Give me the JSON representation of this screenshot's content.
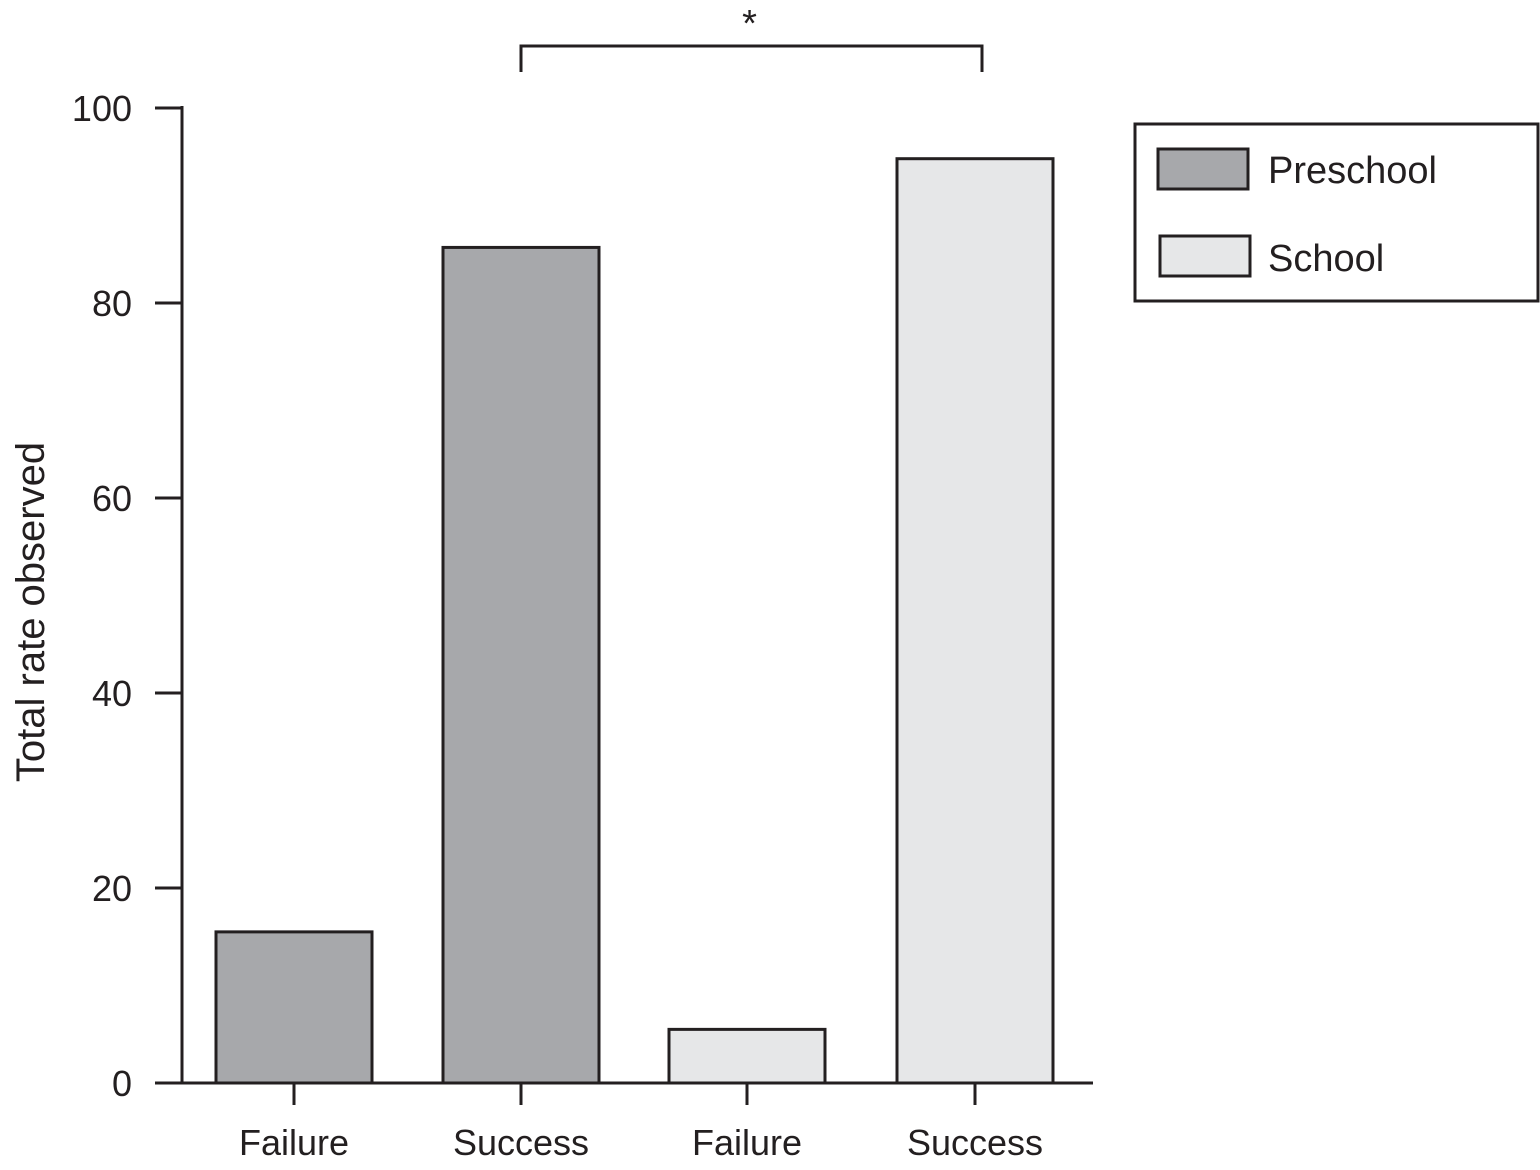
{
  "chart_data": {
    "type": "bar",
    "categories": [
      "Failure",
      "Success",
      "Failure",
      "Success"
    ],
    "series": [
      {
        "name": "Preschool",
        "color": "#a7a8ab",
        "values": [
          15.5,
          85.7,
          null,
          null
        ]
      },
      {
        "name": "School",
        "color": "#e6e7e8",
        "values": [
          null,
          null,
          5.5,
          94.8
        ]
      }
    ],
    "ylabel": "Total rate observed",
    "xlabel": "",
    "title": "",
    "ylim": [
      0,
      100
    ],
    "yticks": [
      0,
      20,
      40,
      60,
      80,
      100
    ],
    "grid": false,
    "legend": {
      "placement": "top-right"
    },
    "annotations": [
      {
        "type": "significance-bracket",
        "from_category_index": 1,
        "to_category_index": 3,
        "label": "*"
      }
    ]
  },
  "colors": {
    "axis": "#231f20",
    "preschool": "#a7a8ab",
    "school": "#e6e7e8"
  }
}
